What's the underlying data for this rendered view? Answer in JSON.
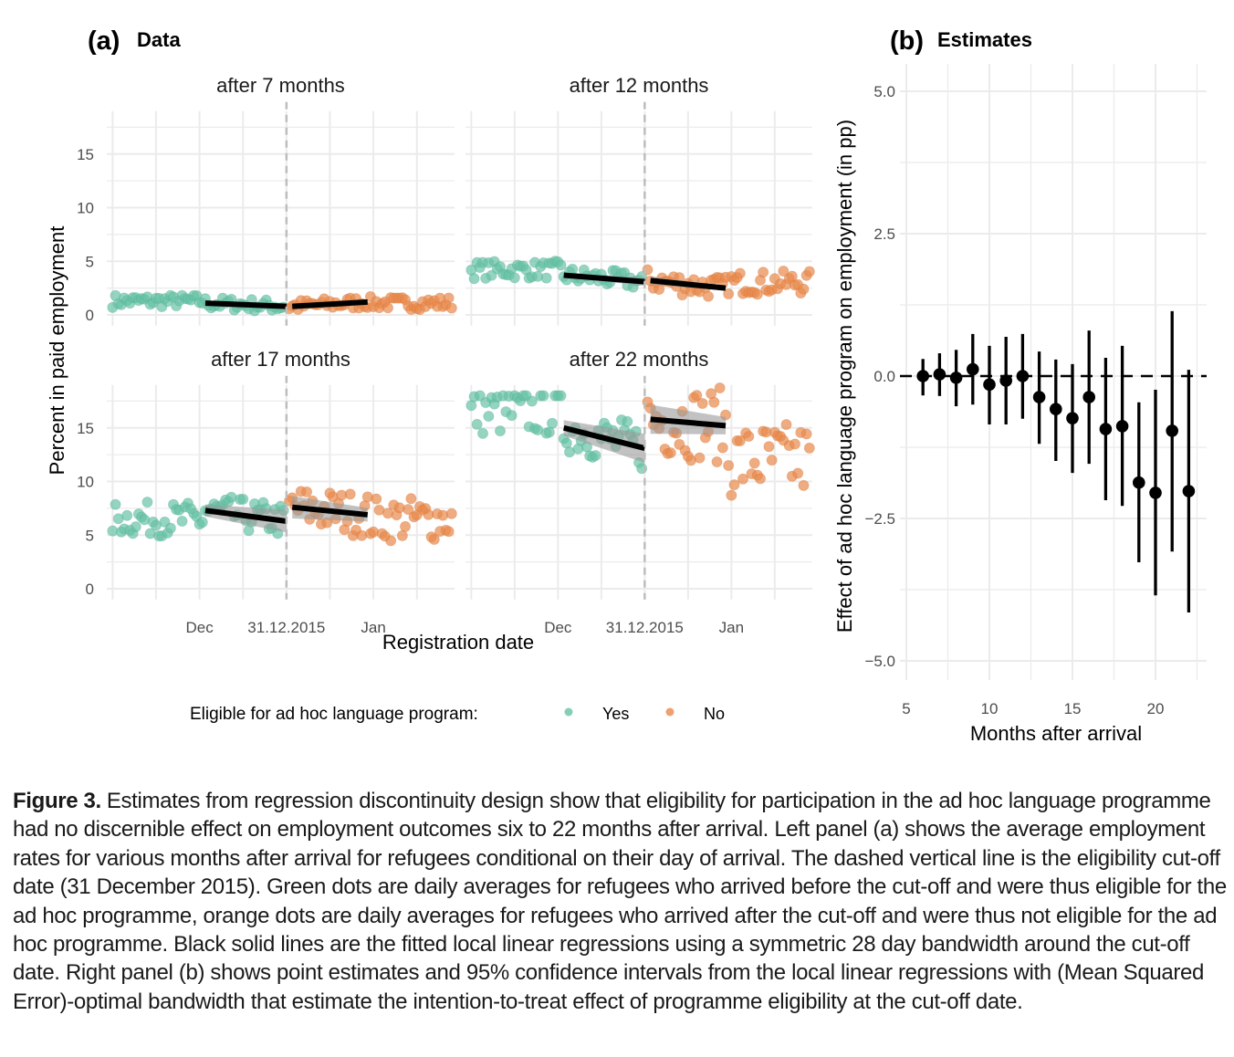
{
  "chart_data": [
    {
      "type": "scatter",
      "panel_label": "(a)",
      "title": "Data",
      "xlabel": "Registration date",
      "ylabel": "Percent in paid employment",
      "x_units": "days relative to cut-off (31.12.2015)",
      "xlim": [
        -62,
        58
      ],
      "ylim": [
        -1,
        19
      ],
      "y_ticks": [
        0,
        5,
        10,
        15
      ],
      "x_ticks": [
        {
          "label": "Dec",
          "value": -30
        },
        {
          "label": "31.12.2015",
          "value": 0
        },
        {
          "label": "Jan",
          "value": 30
        }
      ],
      "grid": true,
      "cutoff_line": {
        "value": 0,
        "style": "dashed"
      },
      "legend": {
        "title": "Eligible for ad hoc language program:",
        "position": "bottom",
        "entries": [
          {
            "label": "Yes",
            "color": "#66c2a5"
          },
          {
            "label": "No",
            "color": "#e8894a"
          }
        ]
      },
      "facets": [
        {
          "title": "after 7 months",
          "eligible_mean_range": [
            0.2,
            2.4
          ],
          "ineligible_mean_range": [
            0.0,
            2.2
          ],
          "fit_left": {
            "x": [
              -28,
              0
            ],
            "y": [
              1.1,
              0.8
            ]
          },
          "fit_right": {
            "x": [
              2,
              28
            ],
            "y": [
              0.8,
              1.2
            ]
          },
          "band_halfwidth": 0.15
        },
        {
          "title": "after 12 months",
          "eligible_mean_range": [
            2.5,
            5.5
          ],
          "ineligible_mean_range": [
            1.0,
            5.0
          ],
          "fit_left": {
            "x": [
              -28,
              0
            ],
            "y": [
              3.7,
              3.1
            ]
          },
          "fit_right": {
            "x": [
              2,
              28
            ],
            "y": [
              3.2,
              2.5
            ]
          },
          "band_halfwidth": 0.25
        },
        {
          "title": "after 17 months",
          "eligible_mean_range": [
            3.6,
            9.4
          ],
          "ineligible_mean_range": [
            2.7,
            10.3
          ],
          "fit_left": {
            "x": [
              -28,
              0
            ],
            "y": [
              7.3,
              6.3
            ]
          },
          "fit_right": {
            "x": [
              2,
              28
            ],
            "y": [
              7.6,
              6.9
            ]
          },
          "band_halfwidth": 0.7
        },
        {
          "title": "after 22 months",
          "eligible_mean_range": [
            9.8,
            18.0
          ],
          "ineligible_mean_range": [
            6.7,
            19.5
          ],
          "fit_left": {
            "x": [
              -28,
              0
            ],
            "y": [
              15.0,
              13.1
            ]
          },
          "fit_right": {
            "x": [
              2,
              28
            ],
            "y": [
              15.8,
              15.2
            ]
          },
          "band_halfwidth": 0.9
        }
      ]
    },
    {
      "type": "scatter",
      "subtype": "pointrange",
      "panel_label": "(b)",
      "title": "Estimates",
      "xlabel": "Months after arrival",
      "ylabel": "Effect of ad hoc language program on employment (in pp)",
      "xlim": [
        5,
        23
      ],
      "ylim": [
        -5.5,
        5.5
      ],
      "x_ticks": [
        5,
        10,
        15,
        20
      ],
      "y_ticks": [
        "5.0",
        "2.5",
        "0.0",
        "−2.5",
        "−5.0"
      ],
      "y_tick_values": [
        5.0,
        2.5,
        0.0,
        -2.5,
        -5.0
      ],
      "grid": true,
      "reference_line": {
        "value": 0,
        "style": "dashed"
      },
      "points": [
        {
          "x": 6,
          "estimate": 0.0,
          "lower": -0.34,
          "upper": 0.3
        },
        {
          "x": 7,
          "estimate": 0.03,
          "lower": -0.35,
          "upper": 0.4
        },
        {
          "x": 8,
          "estimate": -0.03,
          "lower": -0.53,
          "upper": 0.46
        },
        {
          "x": 9,
          "estimate": 0.12,
          "lower": -0.5,
          "upper": 0.74
        },
        {
          "x": 10,
          "estimate": -0.15,
          "lower": -0.85,
          "upper": 0.53
        },
        {
          "x": 11,
          "estimate": -0.08,
          "lower": -0.85,
          "upper": 0.69
        },
        {
          "x": 12,
          "estimate": 0.0,
          "lower": -0.75,
          "upper": 0.74
        },
        {
          "x": 13,
          "estimate": -0.37,
          "lower": -1.19,
          "upper": 0.43
        },
        {
          "x": 14,
          "estimate": -0.58,
          "lower": -1.49,
          "upper": 0.29
        },
        {
          "x": 15,
          "estimate": -0.74,
          "lower": -1.7,
          "upper": 0.21
        },
        {
          "x": 16,
          "estimate": -0.37,
          "lower": -1.54,
          "upper": 0.8
        },
        {
          "x": 17,
          "estimate": -0.93,
          "lower": -2.18,
          "upper": 0.32
        },
        {
          "x": 18,
          "estimate": -0.88,
          "lower": -2.28,
          "upper": 0.53
        },
        {
          "x": 19,
          "estimate": -1.87,
          "lower": -3.27,
          "upper": -0.46
        },
        {
          "x": 20,
          "estimate": -2.05,
          "lower": -3.85,
          "upper": -0.24
        },
        {
          "x": 21,
          "estimate": -0.96,
          "lower": -3.08,
          "upper": 1.14
        },
        {
          "x": 22,
          "estimate": -2.02,
          "lower": -4.15,
          "upper": 0.11
        }
      ]
    }
  ],
  "caption": {
    "label": "Figure 3.",
    "text": "Estimates from regression discontinuity design show that eligibility for participation in the ad hoc language programme had no discernible effect on employment outcomes six to 22 months after arrival. Left panel (a) shows the average employment rates for various months after arrival for refugees conditional on their day of arrival. The dashed vertical line is the eligibility cut-off date (31 December 2015). Green dots are daily averages for refugees who arrived before the cut-off and were thus eligible for the ad hoc programme, orange dots are daily averages for refugees who arrived after the cut-off and were thus not eligible for the ad hoc programme. Black solid lines are the fitted local linear regressions using a symmetric 28 day bandwidth around the cut-off date. Right panel (b) shows point estimates and 95% confidence intervals from the local linear regressions with (Mean Squared Error)-optimal bandwidth that estimate the intention-to-treat effect of programme eligibility at the cut-off date."
  },
  "colors": {
    "eligible": "#66c2a5",
    "ineligible": "#e8894a",
    "grid": "#ebebeb",
    "fit": "#000000",
    "band": "#999999",
    "cutoff": "#bdbdbd"
  }
}
